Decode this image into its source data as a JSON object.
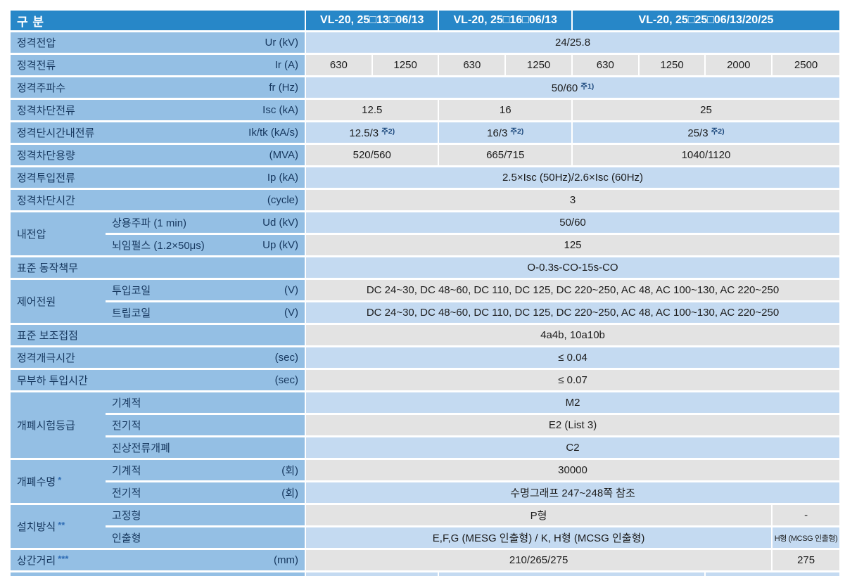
{
  "colors": {
    "header_bg": "#2787c8",
    "label_bg": "#94bfe4",
    "band_blue": "#c4daf1",
    "band_gray": "#e3e3e3",
    "label_text": "#16375e",
    "value_text": "#1c1c1c",
    "note": "#1e4a7e",
    "mark": "#2f6db5",
    "grid": "#ffffff"
  },
  "table": {
    "header": {
      "col0": "구 분",
      "groups": [
        {
          "label": "VL-20, 25□13□06/13",
          "span": 2
        },
        {
          "label": "VL-20, 25□16□06/13",
          "span": 2
        },
        {
          "label": "VL-20, 25□25□06/13/20/25",
          "span": 4
        }
      ]
    },
    "rows": [
      {
        "label": "정격전압",
        "unit": "Ur (kV)",
        "band": "blue",
        "cells": [
          {
            "text": "24/25.8",
            "span": 8
          }
        ]
      },
      {
        "label": "정격전류",
        "unit": "Ir (A)",
        "band": "gray",
        "cells": [
          {
            "text": "630",
            "span": 1
          },
          {
            "text": "1250",
            "span": 1
          },
          {
            "text": "630",
            "span": 1
          },
          {
            "text": "1250",
            "span": 1
          },
          {
            "text": "630",
            "span": 1
          },
          {
            "text": "1250",
            "span": 1
          },
          {
            "text": "2000",
            "span": 1
          },
          {
            "text": "2500",
            "span": 1
          }
        ]
      },
      {
        "label": "정격주파수",
        "unit": "fr (Hz)",
        "band": "blue",
        "cells": [
          {
            "text": "50/60",
            "note": "주1)",
            "span": 8
          }
        ]
      },
      {
        "label": "정격차단전류",
        "unit": "Isc (kA)",
        "band": "gray",
        "cells": [
          {
            "text": "12.5",
            "span": 2
          },
          {
            "text": "16",
            "span": 2
          },
          {
            "text": "25",
            "span": 4
          }
        ]
      },
      {
        "label": "정격단시간내전류",
        "unit": "Ik/tk (kA/s)",
        "band": "blue",
        "cells": [
          {
            "text": "12.5/3",
            "note": "주2)",
            "span": 2
          },
          {
            "text": "16/3",
            "note": "주2)",
            "span": 2
          },
          {
            "text": "25/3",
            "note": "주2)",
            "span": 4
          }
        ]
      },
      {
        "label": "정격차단용량",
        "unit": "(MVA)",
        "band": "gray",
        "cells": [
          {
            "text": "520/560",
            "span": 2
          },
          {
            "text": "665/715",
            "span": 2
          },
          {
            "text": "1040/1120",
            "span": 4
          }
        ]
      },
      {
        "label": "정격투입전류",
        "unit": "Ip (kA)",
        "band": "blue",
        "cells": [
          {
            "text": "2.5×Isc (50Hz)/2.6×Isc (60Hz)",
            "span": 8
          }
        ]
      },
      {
        "label": "정격차단시간",
        "unit": "(cycle)",
        "band": "gray",
        "cells": [
          {
            "text": "3",
            "span": 8
          }
        ]
      },
      {
        "group": {
          "label": "내전압",
          "rowspan": 2
        },
        "sub": "상용주파 (1 min)",
        "unit": "Ud (kV)",
        "band": "blue",
        "cells": [
          {
            "text": "50/60",
            "span": 8
          }
        ]
      },
      {
        "cont": true,
        "sub": "뇌임펄스 (1.2×50μs)",
        "unit": "Up (kV)",
        "band": "gray",
        "cells": [
          {
            "text": "125",
            "span": 8
          }
        ]
      },
      {
        "label": "표준 동작책무",
        "unit": "",
        "band": "blue",
        "cells": [
          {
            "text": "O-0.3s-CO-15s-CO",
            "span": 8
          }
        ]
      },
      {
        "group": {
          "label": "제어전원",
          "rowspan": 2
        },
        "sub": "투입코일",
        "unit": "(V)",
        "band": "gray",
        "cells": [
          {
            "text": "DC 24~30, DC 48~60, DC 110, DC 125, DC 220~250, AC 48, AC 100~130, AC 220~250",
            "span": 8
          }
        ]
      },
      {
        "cont": true,
        "sub": "트립코일",
        "unit": "(V)",
        "band": "blue",
        "cells": [
          {
            "text": "DC 24~30, DC 48~60, DC 110, DC 125, DC 220~250, AC 48, AC 100~130, AC 220~250",
            "span": 8
          }
        ]
      },
      {
        "label": "표준 보조접점",
        "unit": "",
        "band": "gray",
        "cells": [
          {
            "text": "4a4b, 10a10b",
            "span": 8
          }
        ]
      },
      {
        "label": "정격개극시간",
        "unit": "(sec)",
        "band": "blue",
        "cells": [
          {
            "text": "≤ 0.04",
            "span": 8
          }
        ]
      },
      {
        "label": "무부하 투입시간",
        "unit": "(sec)",
        "band": "gray",
        "cells": [
          {
            "text": "≤ 0.07",
            "span": 8
          }
        ]
      },
      {
        "group": {
          "label": "개폐시험등급",
          "rowspan": 3
        },
        "sub": "기계적",
        "unit": "",
        "band": "blue",
        "cells": [
          {
            "text": "M2",
            "span": 8
          }
        ]
      },
      {
        "cont": true,
        "sub": "전기적",
        "unit": "",
        "band": "gray",
        "cells": [
          {
            "text": "E2 (List 3)",
            "span": 8
          }
        ]
      },
      {
        "cont": true,
        "sub": "진상전류개폐",
        "unit": "",
        "band": "blue",
        "cells": [
          {
            "text": "C2",
            "span": 8
          }
        ]
      },
      {
        "group": {
          "label": "개폐수명",
          "mark": "*",
          "rowspan": 2
        },
        "sub": "기계적",
        "unit": "(회)",
        "band": "gray",
        "cells": [
          {
            "text": "30000",
            "span": 8
          }
        ]
      },
      {
        "cont": true,
        "sub": "전기적",
        "unit": "(회)",
        "band": "blue",
        "cells": [
          {
            "text": "수명그래프 247~248쪽 참조",
            "span": 8
          }
        ]
      },
      {
        "group": {
          "label": "설치방식",
          "mark": "**",
          "rowspan": 2
        },
        "sub": "고정형",
        "unit": "",
        "band": "gray",
        "cells": [
          {
            "text": "P형",
            "span": 7
          },
          {
            "text": "-",
            "span": 1
          }
        ]
      },
      {
        "cont": true,
        "sub": "인출형",
        "unit": "",
        "band": "blue",
        "cells": [
          {
            "text": "E,F,G (MESG 인출형) / K, H형 (MCSG 인출형)",
            "span": 7
          },
          {
            "text": "H형 (MCSG 인출형)",
            "span": 1,
            "small": true
          }
        ]
      },
      {
        "label": "상간거리",
        "mark": "***",
        "unit": "(mm)",
        "band": "gray",
        "cells": [
          {
            "text": "210/265/275",
            "span": 7
          },
          {
            "text": "275",
            "span": 1
          }
        ]
      },
      {
        "sliver": true,
        "label": "",
        "unit": "",
        "band": "blue",
        "cells": [
          {
            "text": "",
            "span": 2
          },
          {
            "text": "",
            "span": 4
          },
          {
            "text": "",
            "span": 2
          }
        ]
      }
    ]
  }
}
